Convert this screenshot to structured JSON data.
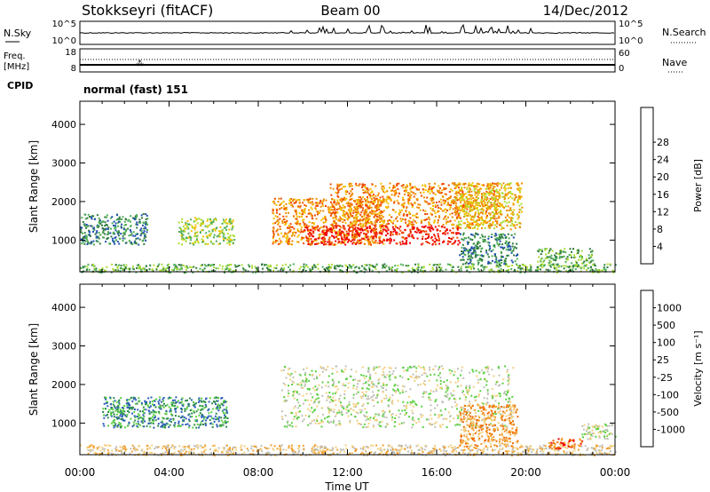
{
  "header": {
    "station": "Stokkseyri (fitACF)",
    "beam": "Beam 00",
    "date": "14/Dec/2012"
  },
  "strip_panels": {
    "nsky_label": "N.Sky",
    "nsky_ticks": [
      "10^5",
      "10^0"
    ],
    "nsearch_label": "N.Search",
    "nsearch_ticks": [
      "10^5",
      "10^0"
    ],
    "freq_label_line1": "Freq.",
    "freq_label_line2": "[MHz]",
    "freq_ticks": [
      "18",
      "8"
    ],
    "nave_label": "Nave",
    "nave_ticks": [
      "60",
      "0"
    ],
    "cpid_label": "CPID",
    "cpid_value": "normal (fast) 151"
  },
  "chart_data": [
    {
      "type": "heatmap",
      "name": "power",
      "ylabel": "Slant Range [km]",
      "ylim": [
        180,
        4600
      ],
      "yticks": [
        1000,
        2000,
        3000,
        4000
      ],
      "colorbar_label": "Power [dB]",
      "colorbar_ticks": [
        "4",
        "8",
        "12",
        "16",
        "20",
        "24",
        "28"
      ],
      "colorbar_colors": [
        "#1a2cff",
        "#1f4fb0",
        "#2e7a3c",
        "#4fae56",
        "#aadd33",
        "#f3c000",
        "#f08a00",
        "#f04a00",
        "#f00000"
      ],
      "regions": [
        {
          "t": [
            0.0,
            24.0
          ],
          "r": [
            180,
            400
          ],
          "level": 3
        },
        {
          "t": [
            0.0,
            3.0
          ],
          "r": [
            900,
            1700
          ],
          "level": 2
        },
        {
          "t": [
            4.4,
            6.9
          ],
          "r": [
            900,
            1600
          ],
          "level": 4
        },
        {
          "t": [
            8.6,
            13.6
          ],
          "r": [
            900,
            2100
          ],
          "level": 6
        },
        {
          "t": [
            10.0,
            17.0
          ],
          "r": [
            900,
            1400
          ],
          "level": 8
        },
        {
          "t": [
            11.2,
            18.8
          ],
          "r": [
            1400,
            2500
          ],
          "level": 6
        },
        {
          "t": [
            16.8,
            19.8
          ],
          "r": [
            1300,
            2500
          ],
          "level": 5
        },
        {
          "t": [
            17.0,
            19.6
          ],
          "r": [
            400,
            1200
          ],
          "level": 2
        },
        {
          "t": [
            20.5,
            23.0
          ],
          "r": [
            350,
            800
          ],
          "level": 3
        }
      ]
    },
    {
      "type": "heatmap",
      "name": "velocity",
      "ylabel": "Slant Range [km]",
      "ylim": [
        180,
        4600
      ],
      "yticks": [
        1000,
        2000,
        3000,
        4000
      ],
      "colorbar_label": "Velocity [m s⁻¹]",
      "colorbar_ticks": [
        "1000",
        "500",
        "100",
        "25",
        "-25",
        "-100",
        "-500",
        "-1000"
      ],
      "colorbar_colors": [
        "#1a2cc8",
        "#2b5db8",
        "#2e8a4c",
        "#5ad040",
        "#c0c0b8",
        "#f2d080",
        "#f2a030",
        "#ee6a00",
        "#f00000"
      ],
      "regions": [
        {
          "t": [
            0.0,
            24.0
          ],
          "r": [
            180,
            450
          ],
          "level": 5
        },
        {
          "t": [
            1.0,
            6.6
          ],
          "r": [
            900,
            1700
          ],
          "level": 2
        },
        {
          "t": [
            9.0,
            19.4
          ],
          "r": [
            900,
            2500
          ],
          "level": 4
        },
        {
          "t": [
            17.0,
            19.6
          ],
          "r": [
            400,
            1500
          ],
          "level": 6
        },
        {
          "t": [
            21.0,
            22.5
          ],
          "r": [
            350,
            650
          ],
          "level": 7
        },
        {
          "t": [
            22.5,
            24.0
          ],
          "r": [
            600,
            1000
          ],
          "level": 4
        }
      ]
    }
  ],
  "x_axis": {
    "label": "Time UT",
    "ticks": [
      "00:00",
      "04:00",
      "08:00",
      "12:00",
      "16:00",
      "20:00",
      "00:00"
    ],
    "range_hours": [
      0,
      24
    ]
  }
}
